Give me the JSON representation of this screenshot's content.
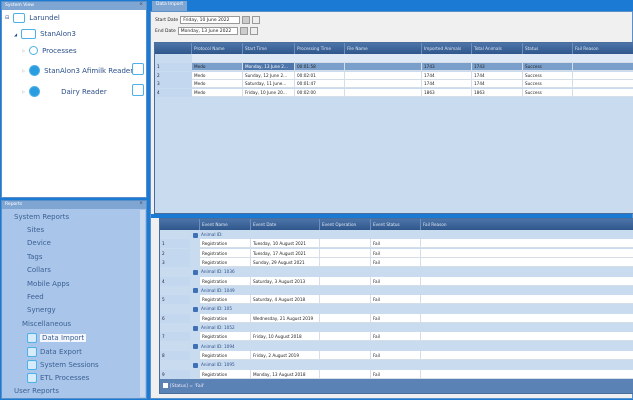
{
  "system_view": {
    "title": "System View",
    "close": "×",
    "items": [
      {
        "label": "Larundel"
      },
      {
        "label": "StanAlon3"
      },
      {
        "label": "Processes"
      },
      {
        "label": "StanAlon3 Afimilk Reader"
      },
      {
        "label": "Dairy Reader"
      }
    ]
  },
  "reports": {
    "title": "Reports",
    "close": "×",
    "system_reports": "System Reports",
    "items": [
      "Sites",
      "Device",
      "Tags",
      "Collars",
      "Mobile Apps",
      "Feed",
      "Synergy"
    ],
    "misc": "Miscellaneous",
    "misc_items": [
      "Data Import",
      "Data Export",
      "System Sessions",
      "ETL Processes"
    ],
    "user_reports": "User Reports",
    "selected": "Data Import"
  },
  "tab": {
    "label": "Data Import"
  },
  "filters": {
    "start_label": "Start Date",
    "start_value": "Friday, 10 June 2022",
    "end_label": "End Date",
    "end_value": "Monday, 13 June 2022"
  },
  "top_grid": {
    "columns": [
      "Protocol Name",
      "Start Time",
      "Processing Time",
      "File Name",
      "Imported Animals",
      "Total Animals",
      "Status",
      "Fail Reason"
    ],
    "rows": [
      [
        "1",
        "Medo",
        "Monday, 13 June 2...",
        "00:01:58",
        "",
        "1743",
        "1743",
        "Success",
        ""
      ],
      [
        "2",
        "Medo",
        "Sunday, 12 June 2...",
        "00:02:01",
        "",
        "1744",
        "1744",
        "Success",
        ""
      ],
      [
        "3",
        "Medo",
        "Saturday, 11 June...",
        "00:01:47",
        "",
        "1744",
        "1744",
        "Success",
        ""
      ],
      [
        "4",
        "Medo",
        "Friday, 10 June 20...",
        "00:02:00",
        "",
        "1863",
        "1863",
        "Success",
        ""
      ]
    ]
  },
  "bottom_grid": {
    "columns": [
      "Event Name",
      "Event Date",
      "Event Operation",
      "Event Status",
      "Fail Reason"
    ],
    "groups": [
      {
        "label": "Animal ID:",
        "rows": [
          [
            "1",
            "Registration",
            "Tuesday, 10 August 2021",
            "",
            "Fail",
            ""
          ],
          [
            "2",
            "Registration",
            "Tuesday, 17 August 2021",
            "",
            "Fail",
            ""
          ],
          [
            "3",
            "Registration",
            "Sunday, 29 August 2021",
            "",
            "Fail",
            ""
          ]
        ]
      },
      {
        "label": "Animal ID: 1036",
        "rows": [
          [
            "4",
            "Registration",
            "Saturday, 3 August 2013",
            "",
            "Fail",
            ""
          ]
        ]
      },
      {
        "label": "Animal ID: 1049",
        "rows": [
          [
            "5",
            "Registration",
            "Saturday, 4 August 2018",
            "",
            "Fail",
            ""
          ]
        ]
      },
      {
        "label": "Animal ID: 105",
        "rows": [
          [
            "6",
            "Registration",
            "Wednesday, 21 August 2019",
            "",
            "Fail",
            ""
          ]
        ]
      },
      {
        "label": "Animal ID: 1052",
        "rows": [
          [
            "7",
            "Registration",
            "Friday, 10 August 2018",
            "",
            "Fail",
            ""
          ]
        ]
      },
      {
        "label": "Animal ID: 1094",
        "rows": [
          [
            "8",
            "Registration",
            "Friday, 2 August 2019",
            "",
            "Fail",
            ""
          ]
        ]
      },
      {
        "label": "Animal ID: 1095",
        "rows": [
          [
            "9",
            "Registration",
            "Monday, 13 August 2018",
            "",
            "Fail",
            ""
          ]
        ]
      }
    ],
    "filter_text": "[Status] = 'Fail'"
  }
}
